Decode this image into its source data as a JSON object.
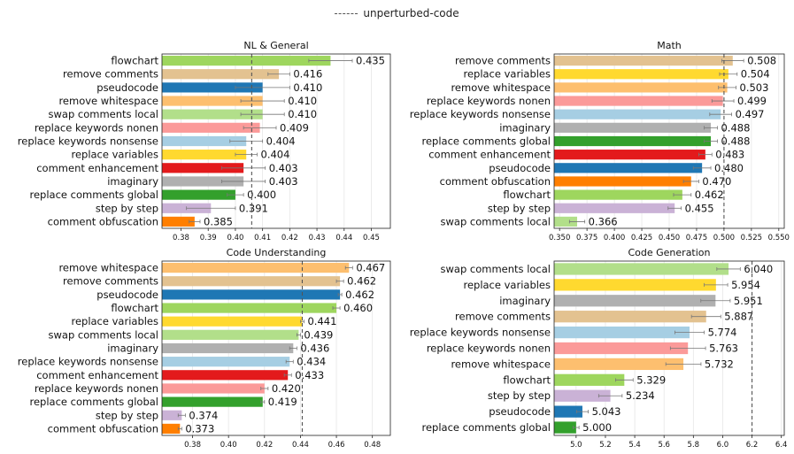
{
  "legend": {
    "label": "unperturbed-code"
  },
  "chart_data": [
    {
      "type": "bar",
      "orientation": "horizontal",
      "title": "NL & General",
      "categories": [
        "flowchart",
        "remove comments",
        "pseudocode",
        "remove whitespace",
        "swap comments local",
        "replace keywords nonen",
        "replace keywords nonsense",
        "replace variables",
        "comment enhancement",
        "imaginary",
        "replace comments global",
        "step by step",
        "comment obfuscation"
      ],
      "values": [
        0.435,
        0.416,
        0.41,
        0.41,
        0.41,
        0.409,
        0.404,
        0.404,
        0.403,
        0.403,
        0.4,
        0.391,
        0.385
      ],
      "value_labels": [
        "0.435",
        "0.416",
        "0.410",
        "0.410",
        "0.410",
        "0.409",
        "0.404",
        "0.404",
        "0.403",
        "0.403",
        "0.400",
        "0.391",
        "0.385"
      ],
      "errors": [
        0.008,
        0.004,
        0.01,
        0.008,
        0.008,
        0.006,
        0.006,
        0.004,
        0.008,
        0.008,
        0.003,
        0.009,
        0.002
      ],
      "colors": [
        "#9ed65e",
        "#e3c290",
        "#1f77b4",
        "#fdbf6f",
        "#b2df8a",
        "#fb9a99",
        "#a6cee3",
        "#ffd92f",
        "#e31a1c",
        "#b0b0b0",
        "#33a02c",
        "#cab2d6",
        "#ff7f00"
      ],
      "baseline": 0.406,
      "xlim": [
        0.373,
        0.457
      ],
      "xticks": [
        "0.38",
        "0.39",
        "0.40",
        "0.41",
        "0.42",
        "0.43",
        "0.44",
        "0.45"
      ],
      "xtick_values": [
        0.38,
        0.39,
        0.4,
        0.41,
        0.42,
        0.43,
        0.44,
        0.45
      ]
    },
    {
      "type": "bar",
      "orientation": "horizontal",
      "title": "Math",
      "categories": [
        "remove comments",
        "replace variables",
        "remove whitespace",
        "replace keywords nonen",
        "replace keywords nonsense",
        "imaginary",
        "replace comments global",
        "comment enhancement",
        "pseudocode",
        "comment obfuscation",
        "flowchart",
        "step by step",
        "swap comments local"
      ],
      "values": [
        0.508,
        0.504,
        0.503,
        0.499,
        0.497,
        0.488,
        0.488,
        0.483,
        0.48,
        0.47,
        0.462,
        0.455,
        0.366
      ],
      "value_labels": [
        "0.508",
        "0.504",
        "0.503",
        "0.499",
        "0.497",
        "0.488",
        "0.488",
        "0.483",
        "0.480",
        "0.470",
        "0.462",
        "0.455",
        "0.366"
      ],
      "errors": [
        0.01,
        0.008,
        0.008,
        0.01,
        0.01,
        0.006,
        0.006,
        0.006,
        0.008,
        0.007,
        0.008,
        0.006,
        0.007
      ],
      "colors": [
        "#e3c290",
        "#ffd92f",
        "#fdbf6f",
        "#fb9a99",
        "#a6cee3",
        "#b0b0b0",
        "#33a02c",
        "#e31a1c",
        "#1f77b4",
        "#ff7f00",
        "#9ed65e",
        "#cab2d6",
        "#b2df8a"
      ],
      "baseline": 0.5,
      "xlim": [
        0.345,
        0.555
      ],
      "xticks": [
        "0.350",
        "0.375",
        "0.400",
        "0.425",
        "0.450",
        "0.475",
        "0.500",
        "0.525",
        "0.550"
      ],
      "xtick_values": [
        0.35,
        0.375,
        0.4,
        0.425,
        0.45,
        0.475,
        0.5,
        0.525,
        0.55
      ]
    },
    {
      "type": "bar",
      "orientation": "horizontal",
      "title": "Code Understanding",
      "categories": [
        "remove whitespace",
        "remove comments",
        "pseudocode",
        "flowchart",
        "replace variables",
        "swap comments local",
        "imaginary",
        "replace keywords nonsense",
        "comment enhancement",
        "replace keywords nonen",
        "replace comments global",
        "step by step",
        "comment obfuscation"
      ],
      "values": [
        0.467,
        0.462,
        0.462,
        0.46,
        0.441,
        0.439,
        0.436,
        0.434,
        0.433,
        0.42,
        0.419,
        0.374,
        0.373
      ],
      "value_labels": [
        "0.467",
        "0.462",
        "0.462",
        "0.460",
        "0.441",
        "0.439",
        "0.436",
        "0.434",
        "0.433",
        "0.420",
        "0.419",
        "0.374",
        "0.373"
      ],
      "errors": [
        0.002,
        0.002,
        0.001,
        0.002,
        0.001,
        0.001,
        0.002,
        0.002,
        0.002,
        0.002,
        0.001,
        0.002,
        0.001
      ],
      "colors": [
        "#fdbf6f",
        "#e3c290",
        "#1f77b4",
        "#9ed65e",
        "#ffd92f",
        "#b2df8a",
        "#b0b0b0",
        "#a6cee3",
        "#e31a1c",
        "#fb9a99",
        "#33a02c",
        "#cab2d6",
        "#ff7f00"
      ],
      "baseline": 0.441,
      "xlim": [
        0.363,
        0.49
      ],
      "xticks": [
        "0.38",
        "0.40",
        "0.42",
        "0.44",
        "0.46",
        "0.48"
      ],
      "xtick_values": [
        0.38,
        0.4,
        0.42,
        0.44,
        0.46,
        0.48
      ]
    },
    {
      "type": "bar",
      "orientation": "horizontal",
      "title": "Code Generation",
      "categories": [
        "swap comments local",
        "replace variables",
        "imaginary",
        "remove comments",
        "replace keywords nonsense",
        "replace keywords nonen",
        "remove whitespace",
        "flowchart",
        "step by step",
        "pseudocode",
        "replace comments global"
      ],
      "values": [
        6.04,
        5.954,
        5.951,
        5.887,
        5.774,
        5.763,
        5.732,
        5.329,
        5.234,
        5.043,
        5.0
      ],
      "value_labels": [
        "6.040",
        "5.954",
        "5.951",
        "5.887",
        "5.774",
        "5.763",
        "5.732",
        "5.329",
        "5.234",
        "5.043",
        "5.000"
      ],
      "errors": [
        0.08,
        0.08,
        0.1,
        0.1,
        0.1,
        0.12,
        0.12,
        0.06,
        0.08,
        0.04,
        0.02
      ],
      "colors": [
        "#b2df8a",
        "#ffd92f",
        "#b0b0b0",
        "#e3c290",
        "#a6cee3",
        "#fb9a99",
        "#fdbf6f",
        "#9ed65e",
        "#cab2d6",
        "#1f77b4",
        "#33a02c"
      ],
      "baseline": 6.2,
      "xlim": [
        4.85,
        6.42
      ],
      "xticks": [
        "5.0",
        "5.2",
        "5.4",
        "5.6",
        "5.8",
        "6.0",
        "6.2",
        "6.4"
      ],
      "xtick_values": [
        5.0,
        5.2,
        5.4,
        5.6,
        5.8,
        6.0,
        6.2,
        6.4
      ]
    }
  ]
}
